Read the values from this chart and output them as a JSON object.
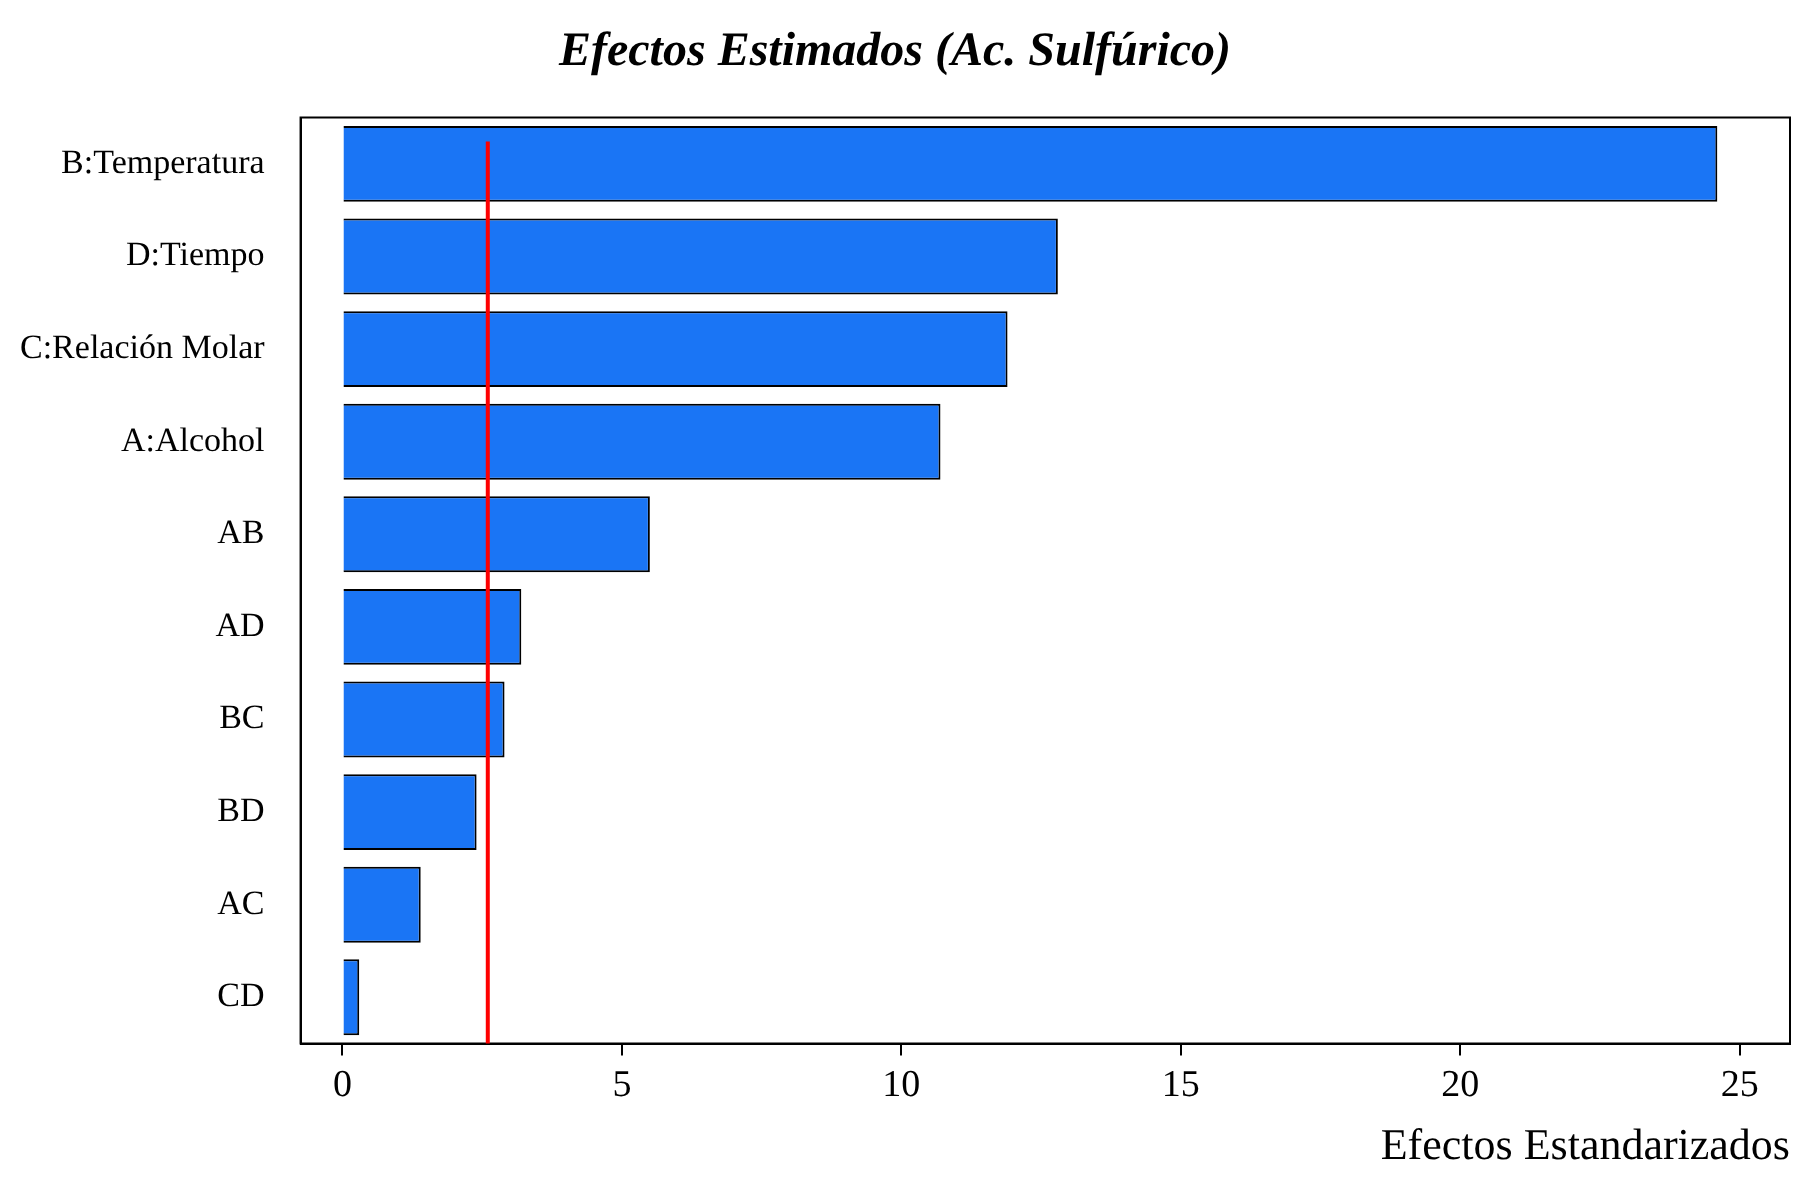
{
  "chart_data": {
    "type": "bar",
    "orientation": "horizontal",
    "title": "Efectos Estimados (Ac. Sulfúrico)",
    "xlabel": "Efectos Estandarizados",
    "categories": [
      "B:Temperatura",
      "D:Tiempo",
      "C:Relación Molar",
      "A:Alcohol",
      "AB",
      "AD",
      "BC",
      "BD",
      "AC",
      "CD"
    ],
    "values": [
      24.6,
      12.8,
      11.9,
      10.7,
      5.5,
      3.2,
      2.9,
      2.4,
      1.4,
      0.3
    ],
    "color": "#1a75f5",
    "xlim": [
      -0.75,
      25.9
    ],
    "xticks": [
      0,
      5,
      10,
      15,
      20,
      25
    ],
    "ref_lines": [
      {
        "axis": "x",
        "value": 2.6,
        "color": "#ff0000"
      }
    ],
    "grid": false,
    "legend": false
  }
}
